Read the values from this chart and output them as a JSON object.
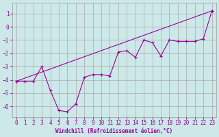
{
  "xlabel": "Windchill (Refroidissement éolien,°C)",
  "background_color": "#cce8e8",
  "grid_color": "#aaaaaa",
  "line_color": "#990099",
  "xlim": [
    -0.5,
    23.5
  ],
  "ylim": [
    -6.8,
    1.8
  ],
  "yticks": [
    1,
    0,
    -1,
    -2,
    -3,
    -4,
    -5,
    -6
  ],
  "xticks": [
    0,
    1,
    2,
    3,
    4,
    5,
    6,
    7,
    8,
    9,
    10,
    11,
    12,
    13,
    14,
    15,
    16,
    17,
    18,
    19,
    20,
    21,
    22,
    23
  ],
  "line1_x": [
    0,
    1,
    2,
    3,
    4,
    5,
    6,
    7,
    8,
    9,
    10,
    11,
    12,
    13,
    14,
    15,
    16,
    17,
    18,
    19,
    20,
    21,
    22,
    23
  ],
  "line1_y": [
    -4.1,
    -4.1,
    -4.1,
    -3.0,
    -4.8,
    -6.3,
    -6.4,
    -5.8,
    -3.8,
    -3.6,
    -3.6,
    -3.7,
    -1.9,
    -1.8,
    -2.3,
    -1.0,
    -1.2,
    -2.2,
    -1.0,
    -1.1,
    -1.1,
    -1.1,
    -0.9,
    1.2
  ],
  "line2_x": [
    0,
    23
  ],
  "line2_y": [
    -4.1,
    1.2
  ],
  "tick_fontsize": 5.5,
  "xlabel_fontsize": 5.5
}
